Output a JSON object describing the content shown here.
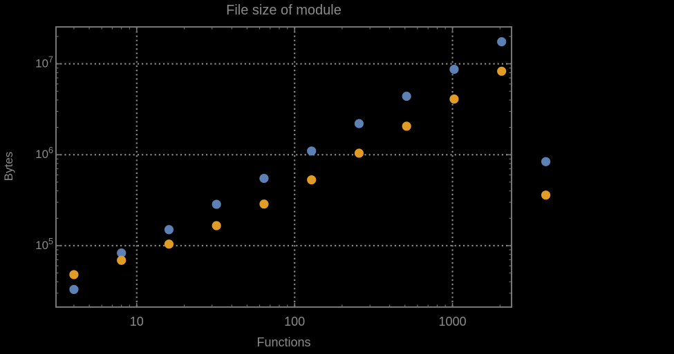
{
  "chart_data": {
    "type": "scatter",
    "title": "File size of module",
    "xlabel": "Functions",
    "ylabel": "Bytes",
    "x_scale": "log",
    "y_scale": "log",
    "xlim": [
      3.08,
      2366
    ],
    "ylim": [
      21100,
      25480000
    ],
    "grid": "dotted",
    "legend": "none",
    "x_ticks": [
      {
        "value": 10,
        "label": "10"
      },
      {
        "value": 100,
        "label": "100"
      },
      {
        "value": 1000,
        "label": "1000"
      }
    ],
    "y_ticks": [
      {
        "value": 100000,
        "base": "10",
        "exp": "5",
        "label": "10^5"
      },
      {
        "value": 1000000,
        "base": "10",
        "exp": "6",
        "label": "10^6"
      },
      {
        "value": 10000000,
        "base": "10",
        "exp": "7",
        "label": "10^7"
      }
    ],
    "colors": {
      "background": "#000000",
      "frame": "#767676",
      "gridlines": "#878787",
      "labels": "#8a8a8a",
      "series1": "#5e81b5",
      "series2": "#e09c24"
    },
    "series": [
      {
        "name": "series-1-blue",
        "color": "#5e81b5",
        "points": [
          [
            4,
            33000
          ],
          [
            8,
            83000
          ],
          [
            16,
            150000
          ],
          [
            32,
            285000
          ],
          [
            64,
            550000
          ],
          [
            128,
            1100000
          ],
          [
            256,
            2200000
          ],
          [
            512,
            4400000
          ],
          [
            1024,
            8700000
          ],
          [
            2048,
            17500000
          ],
          [
            3900,
            840000
          ]
        ]
      },
      {
        "name": "series-2-orange",
        "color": "#e09c24",
        "points": [
          [
            4,
            48000
          ],
          [
            8,
            69000
          ],
          [
            16,
            104000
          ],
          [
            32,
            166000
          ],
          [
            64,
            287000
          ],
          [
            128,
            530000
          ],
          [
            256,
            1040000
          ],
          [
            512,
            2060000
          ],
          [
            1024,
            4100000
          ],
          [
            2048,
            8300000
          ],
          [
            3900,
            360000
          ]
        ]
      }
    ]
  }
}
